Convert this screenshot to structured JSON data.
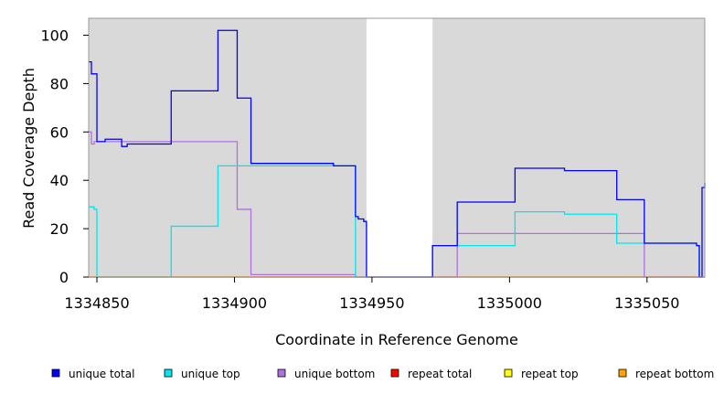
{
  "chart_data": {
    "type": "line",
    "title": "",
    "xlabel": "Coordinate in Reference Genome",
    "ylabel": "Read Coverage Depth",
    "xlim": [
      1334847,
      1335071
    ],
    "ylim": [
      0,
      107
    ],
    "x_ticks": [
      1334850,
      1334900,
      1334950,
      1335000,
      1335050
    ],
    "y_ticks": [
      0,
      20,
      40,
      60,
      80,
      100
    ],
    "shaded_regions": [
      {
        "x0": 1334847,
        "x1": 1334948,
        "color": "#d9d9d9"
      },
      {
        "x0": 1334972,
        "x1": 1335071,
        "color": "#d9d9d9"
      }
    ],
    "legend_position": "bottom",
    "series": [
      {
        "name": "unique total",
        "color": "#0000ff",
        "points": [
          [
            1334847,
            89
          ],
          [
            1334848,
            89
          ],
          [
            1334848,
            84
          ],
          [
            1334850,
            84
          ],
          [
            1334850,
            56
          ],
          [
            1334853,
            56
          ],
          [
            1334853,
            57
          ],
          [
            1334859,
            57
          ],
          [
            1334859,
            54
          ],
          [
            1334861,
            54
          ],
          [
            1334861,
            55
          ],
          [
            1334877,
            55
          ],
          [
            1334877,
            77
          ],
          [
            1334894,
            77
          ],
          [
            1334894,
            102
          ],
          [
            1334901,
            102
          ],
          [
            1334901,
            74
          ],
          [
            1334906,
            74
          ],
          [
            1334906,
            47
          ],
          [
            1334936,
            47
          ],
          [
            1334936,
            46
          ],
          [
            1334944,
            46
          ],
          [
            1334944,
            25
          ],
          [
            1334945,
            25
          ],
          [
            1334945,
            24
          ],
          [
            1334947,
            24
          ],
          [
            1334947,
            23
          ],
          [
            1334948,
            23
          ],
          [
            1334948,
            0
          ],
          [
            1334972,
            0
          ],
          [
            1334972,
            13
          ],
          [
            1334981,
            13
          ],
          [
            1334981,
            31
          ],
          [
            1335002,
            31
          ],
          [
            1335002,
            45
          ],
          [
            1335020,
            45
          ],
          [
            1335020,
            44
          ],
          [
            1335039,
            44
          ],
          [
            1335039,
            32
          ],
          [
            1335049,
            32
          ],
          [
            1335049,
            14
          ],
          [
            1335068,
            14
          ],
          [
            1335068,
            13
          ],
          [
            1335069,
            13
          ],
          [
            1335069,
            0
          ],
          [
            1335070,
            0
          ],
          [
            1335070,
            37
          ],
          [
            1335071,
            37
          ],
          [
            1335071,
            39
          ]
        ]
      },
      {
        "name": "unique top",
        "color": "#00e5ee",
        "points": [
          [
            1334847,
            29
          ],
          [
            1334849,
            29
          ],
          [
            1334849,
            28
          ],
          [
            1334850,
            28
          ],
          [
            1334850,
            0
          ],
          [
            1334877,
            0
          ],
          [
            1334877,
            21
          ],
          [
            1334894,
            21
          ],
          [
            1334894,
            46
          ],
          [
            1334944,
            46
          ],
          [
            1334944,
            0
          ],
          [
            1334972,
            0
          ],
          [
            1334972,
            13
          ],
          [
            1335002,
            13
          ],
          [
            1335002,
            27
          ],
          [
            1335020,
            27
          ],
          [
            1335020,
            26
          ],
          [
            1335039,
            26
          ],
          [
            1335039,
            14
          ],
          [
            1335068,
            14
          ],
          [
            1335068,
            13
          ],
          [
            1335069,
            13
          ],
          [
            1335069,
            0
          ]
        ]
      },
      {
        "name": "unique bottom",
        "color": "#b070e0",
        "points": [
          [
            1334847,
            60
          ],
          [
            1334848,
            60
          ],
          [
            1334848,
            55
          ],
          [
            1334849,
            55
          ],
          [
            1334849,
            56
          ],
          [
            1334901,
            56
          ],
          [
            1334901,
            28
          ],
          [
            1334906,
            28
          ],
          [
            1334906,
            1
          ],
          [
            1334944,
            1
          ],
          [
            1334944,
            0
          ],
          [
            1334981,
            0
          ],
          [
            1334981,
            18
          ],
          [
            1335049,
            18
          ],
          [
            1335049,
            0
          ],
          [
            1335071,
            0
          ]
        ]
      },
      {
        "name": "repeat total",
        "color": "#ff0000",
        "points": [
          [
            1334847,
            0
          ],
          [
            1335071,
            0
          ]
        ]
      },
      {
        "name": "repeat top",
        "color": "#ffff00",
        "points": [
          [
            1334847,
            0
          ],
          [
            1335071,
            0
          ]
        ]
      },
      {
        "name": "repeat bottom",
        "color": "#ffa500",
        "points": [
          [
            1334847,
            0
          ],
          [
            1335071,
            0
          ]
        ]
      }
    ]
  }
}
